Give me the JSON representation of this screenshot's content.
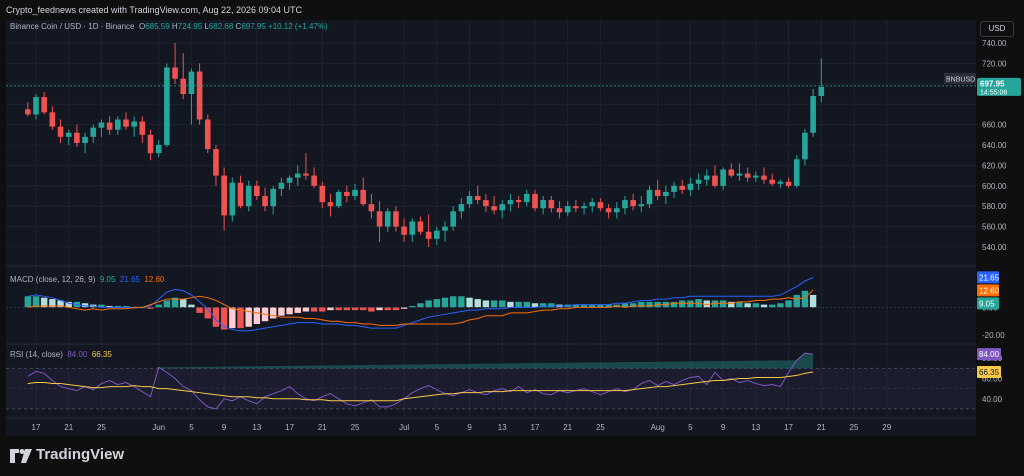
{
  "header": {
    "caption": "Crypto_feednews created with TradingView.com, Aug 22, 2026 09:04 UTC"
  },
  "legend_main": {
    "symbol": "Binance Coin / USD · 1D · Binance",
    "o_lbl": "O",
    "o": "685.59",
    "h_lbl": "H",
    "h": "724.95",
    "l_lbl": "L",
    "l": "682.68",
    "c_lbl": "C",
    "c": "697.95",
    "chg": "+10.12 (+1.47%)"
  },
  "legend_macd": {
    "label": "MACD (close, 12, 26, 9)",
    "hist": "9.05",
    "macd": "21.65",
    "signal": "12.60"
  },
  "legend_rsi": {
    "label": "RSI (14, close)",
    "rsi": "84.00",
    "ma": "66.35"
  },
  "axis": {
    "currency": "USD"
  },
  "brand": {
    "name": "TradingView"
  },
  "colors": {
    "up": "#26a69a",
    "down": "#ef5350",
    "macd": "#2962ff",
    "signal": "#ff6d00",
    "rsi": "#7e57c2",
    "rsi_ma": "#f7c948",
    "bg": "#131722"
  },
  "chart_data": {
    "type": "candlestick",
    "symbol": "BNBUSD",
    "last_price": {
      "label": "BNBUSD",
      "value": "697.95",
      "countdown": "14:55:06"
    },
    "price_axis": {
      "ticks": [
        540,
        560,
        580,
        600,
        620,
        640,
        660,
        680,
        700,
        720,
        740
      ],
      "labels": [
        "540.00",
        "560.00",
        "580.00",
        "600.00",
        "620.00",
        "640.00",
        "660.00",
        "",
        "",
        "720.00",
        "740.00"
      ]
    },
    "x_ticks": [
      {
        "day": 0,
        "label": "17"
      },
      {
        "day": 4,
        "label": "21"
      },
      {
        "day": 8,
        "label": "25"
      },
      {
        "day": 15,
        "label": "Jun"
      },
      {
        "day": 19,
        "label": "5"
      },
      {
        "day": 23,
        "label": "9"
      },
      {
        "day": 27,
        "label": "13"
      },
      {
        "day": 31,
        "label": "17"
      },
      {
        "day": 35,
        "label": "21"
      },
      {
        "day": 39,
        "label": "25"
      },
      {
        "day": 45,
        "label": "Jul"
      },
      {
        "day": 49,
        "label": "5"
      },
      {
        "day": 53,
        "label": "9"
      },
      {
        "day": 57,
        "label": "13"
      },
      {
        "day": 61,
        "label": "17"
      },
      {
        "day": 65,
        "label": "21"
      },
      {
        "day": 69,
        "label": "25"
      },
      {
        "day": 76,
        "label": "Aug"
      },
      {
        "day": 80,
        "label": "5"
      },
      {
        "day": 84,
        "label": "9"
      },
      {
        "day": 88,
        "label": "13"
      },
      {
        "day": 92,
        "label": "17"
      },
      {
        "day": 96,
        "label": "21"
      },
      {
        "day": 100,
        "label": "25"
      },
      {
        "day": 104,
        "label": "29"
      }
    ],
    "candles": [
      [
        -1,
        675,
        682,
        668,
        670
      ],
      [
        0,
        670,
        690,
        665,
        687
      ],
      [
        1,
        687,
        692,
        670,
        672
      ],
      [
        2,
        672,
        678,
        655,
        658
      ],
      [
        3,
        658,
        665,
        642,
        648
      ],
      [
        4,
        648,
        655,
        640,
        652
      ],
      [
        5,
        652,
        660,
        638,
        642
      ],
      [
        6,
        642,
        652,
        632,
        648
      ],
      [
        7,
        648,
        660,
        642,
        657
      ],
      [
        8,
        657,
        665,
        648,
        662
      ],
      [
        9,
        662,
        668,
        650,
        655
      ],
      [
        10,
        655,
        668,
        650,
        665
      ],
      [
        11,
        665,
        672,
        655,
        658
      ],
      [
        12,
        658,
        668,
        648,
        663
      ],
      [
        13,
        663,
        668,
        642,
        650
      ],
      [
        14,
        650,
        655,
        625,
        632
      ],
      [
        15,
        632,
        645,
        628,
        640
      ],
      [
        16,
        640,
        720,
        638,
        716
      ],
      [
        17,
        716,
        740,
        700,
        705
      ],
      [
        18,
        705,
        730,
        685,
        690
      ],
      [
        19,
        690,
        715,
        660,
        712
      ],
      [
        20,
        712,
        720,
        660,
        665
      ],
      [
        21,
        665,
        670,
        632,
        636
      ],
      [
        22,
        636,
        640,
        600,
        610
      ],
      [
        23,
        610,
        618,
        556,
        571
      ],
      [
        24,
        571,
        608,
        565,
        603
      ],
      [
        25,
        603,
        610,
        578,
        580
      ],
      [
        26,
        580,
        605,
        575,
        600
      ],
      [
        27,
        600,
        605,
        586,
        590
      ],
      [
        28,
        590,
        598,
        575,
        580
      ],
      [
        29,
        580,
        600,
        572,
        597
      ],
      [
        30,
        597,
        608,
        590,
        603
      ],
      [
        31,
        603,
        610,
        596,
        608
      ],
      [
        32,
        608,
        620,
        600,
        612
      ],
      [
        33,
        612,
        632,
        606,
        610
      ],
      [
        34,
        610,
        618,
        598,
        600
      ],
      [
        35,
        600,
        604,
        578,
        584
      ],
      [
        36,
        584,
        592,
        570,
        580
      ],
      [
        37,
        580,
        596,
        578,
        594
      ],
      [
        38,
        594,
        600,
        584,
        590
      ],
      [
        39,
        590,
        602,
        586,
        596
      ],
      [
        40,
        596,
        608,
        580,
        582
      ],
      [
        41,
        582,
        592,
        568,
        575
      ],
      [
        42,
        575,
        585,
        545,
        560
      ],
      [
        43,
        560,
        578,
        555,
        575
      ],
      [
        44,
        575,
        580,
        555,
        560
      ],
      [
        45,
        560,
        568,
        545,
        552
      ],
      [
        46,
        552,
        568,
        545,
        565
      ],
      [
        47,
        565,
        570,
        552,
        555
      ],
      [
        48,
        555,
        572,
        540,
        548
      ],
      [
        49,
        548,
        560,
        542,
        556
      ],
      [
        50,
        556,
        565,
        545,
        560
      ],
      [
        51,
        560,
        580,
        556,
        575
      ],
      [
        52,
        575,
        588,
        568,
        582
      ],
      [
        53,
        582,
        595,
        578,
        590
      ],
      [
        54,
        590,
        600,
        582,
        586
      ],
      [
        55,
        586,
        592,
        574,
        580
      ],
      [
        56,
        580,
        590,
        572,
        576
      ],
      [
        57,
        576,
        586,
        568,
        582
      ],
      [
        58,
        582,
        592,
        575,
        586
      ],
      [
        59,
        586,
        590,
        578,
        584
      ],
      [
        60,
        584,
        596,
        580,
        592
      ],
      [
        61,
        592,
        596,
        575,
        578
      ],
      [
        62,
        578,
        590,
        572,
        586
      ],
      [
        63,
        586,
        590,
        574,
        578
      ],
      [
        64,
        578,
        585,
        568,
        574
      ],
      [
        65,
        574,
        585,
        570,
        580
      ],
      [
        66,
        580,
        586,
        574,
        578
      ],
      [
        67,
        578,
        584,
        572,
        580
      ],
      [
        68,
        580,
        588,
        574,
        584
      ],
      [
        69,
        584,
        588,
        575,
        578
      ],
      [
        70,
        578,
        582,
        568,
        574
      ],
      [
        71,
        574,
        584,
        568,
        578
      ],
      [
        72,
        578,
        590,
        572,
        586
      ],
      [
        73,
        586,
        592,
        576,
        580
      ],
      [
        74,
        580,
        590,
        574,
        582
      ],
      [
        75,
        582,
        600,
        578,
        596
      ],
      [
        76,
        596,
        606,
        586,
        590
      ],
      [
        77,
        590,
        600,
        582,
        594
      ],
      [
        78,
        594,
        604,
        588,
        600
      ],
      [
        79,
        600,
        606,
        592,
        596
      ],
      [
        80,
        596,
        608,
        590,
        602
      ],
      [
        81,
        602,
        612,
        596,
        606
      ],
      [
        82,
        606,
        616,
        600,
        610
      ],
      [
        83,
        610,
        620,
        598,
        600
      ],
      [
        84,
        600,
        618,
        596,
        616
      ],
      [
        85,
        616,
        622,
        608,
        610
      ],
      [
        86,
        610,
        622,
        605,
        612
      ],
      [
        87,
        612,
        618,
        604,
        608
      ],
      [
        88,
        608,
        614,
        604,
        610
      ],
      [
        89,
        610,
        618,
        602,
        606
      ],
      [
        90,
        606,
        612,
        600,
        602
      ],
      [
        91,
        602,
        606,
        598,
        604
      ],
      [
        92,
        604,
        608,
        598,
        600
      ],
      [
        93,
        600,
        630,
        598,
        626
      ],
      [
        94,
        626,
        656,
        620,
        652
      ],
      [
        95,
        652,
        695,
        648,
        688
      ],
      [
        96,
        688,
        725,
        682,
        697
      ]
    ],
    "macd": {
      "y_ticks": [
        0,
        -20
      ],
      "hist": [
        8,
        8,
        7,
        6,
        5,
        4,
        4,
        3,
        2,
        2,
        1,
        1,
        1,
        0,
        0,
        -1,
        2,
        5,
        7,
        6,
        2,
        -4,
        -8,
        -14,
        -16,
        -15,
        -15,
        -14,
        -12,
        -10,
        -8,
        -6,
        -5,
        -4,
        -3,
        -3,
        -3,
        -2,
        -2,
        -2,
        -2,
        -2,
        -3,
        -2,
        -2,
        -2,
        -1,
        1,
        3,
        5,
        6,
        7,
        8,
        8,
        7,
        6,
        5,
        5,
        5,
        4,
        4,
        4,
        3,
        3,
        3,
        2,
        2,
        2,
        2,
        2,
        2,
        2,
        2,
        3,
        3,
        4,
        4,
        4,
        4,
        4,
        5,
        5,
        6,
        5,
        5,
        5,
        4,
        4,
        3,
        3,
        2,
        2,
        3,
        5,
        9,
        12,
        9
      ],
      "macd_line": [
        8,
        9,
        8,
        7,
        5,
        3,
        2,
        1,
        1,
        0,
        0,
        0,
        0,
        0,
        0,
        1,
        6,
        11,
        13,
        12,
        9,
        4,
        -1,
        -9,
        -14,
        -16,
        -17,
        -17,
        -16,
        -15,
        -14,
        -13,
        -12,
        -11,
        -11,
        -11,
        -12,
        -12,
        -12,
        -13,
        -13,
        -14,
        -15,
        -15,
        -15,
        -15,
        -13,
        -11,
        -9,
        -7,
        -6,
        -5,
        -4,
        -3,
        -2,
        -2,
        -1,
        -1,
        -1,
        0,
        0,
        0,
        0,
        1,
        1,
        1,
        1,
        2,
        2,
        2,
        2,
        2,
        3,
        3,
        4,
        5,
        5,
        6,
        6,
        7,
        7,
        8,
        8,
        8,
        8,
        8,
        8,
        8,
        8,
        8,
        8,
        8,
        9,
        12,
        15,
        19,
        21.65
      ],
      "signal_line": [
        0,
        1,
        1,
        1,
        1,
        0,
        -1,
        -2,
        -1,
        -2,
        -1,
        -1,
        -1,
        0,
        0,
        2,
        4,
        6,
        6,
        6,
        7,
        8,
        7,
        5,
        2,
        -1,
        -2,
        -3,
        -4,
        -5,
        -6,
        -7,
        -7,
        -7,
        -8,
        -8,
        -9,
        -10,
        -10,
        -11,
        -11,
        -12,
        -12,
        -13,
        -13,
        -13,
        -12,
        -12,
        -12,
        -12,
        -12,
        -12,
        -12,
        -11,
        -9,
        -8,
        -6,
        -6,
        -6,
        -4,
        -4,
        -4,
        -3,
        -2,
        -2,
        -1,
        -1,
        0,
        0,
        0,
        0,
        0,
        1,
        0,
        1,
        1,
        1,
        2,
        2,
        3,
        3,
        3,
        3,
        2,
        3,
        3,
        3,
        4,
        4,
        5,
        5,
        6,
        6,
        7,
        6,
        7,
        12.6
      ]
    },
    "rsi": {
      "y_ticks": [
        40,
        60,
        80
      ],
      "upper": 70,
      "lower": 30,
      "values": [
        62,
        67,
        65,
        58,
        52,
        50,
        48,
        52,
        49,
        55,
        58,
        54,
        56,
        52,
        47,
        42,
        71,
        66,
        60,
        52,
        48,
        39,
        32,
        30,
        40,
        38,
        42,
        38,
        35,
        42,
        45,
        48,
        52,
        45,
        40,
        38,
        42,
        45,
        40,
        35,
        33,
        36,
        39,
        32,
        32,
        35,
        40,
        46,
        50,
        53,
        49,
        45,
        43,
        46,
        49,
        46,
        44,
        48,
        50,
        47,
        52,
        46,
        49,
        45,
        44,
        48,
        46,
        48,
        50,
        47,
        44,
        47,
        50,
        47,
        49,
        55,
        58,
        53,
        57,
        54,
        58,
        61,
        62,
        54,
        66,
        58,
        60,
        56,
        58,
        55,
        53,
        54,
        52,
        66,
        78,
        85,
        84
      ],
      "ma": [
        55,
        56,
        56,
        55,
        55,
        54,
        53,
        52,
        51,
        51,
        52,
        52,
        52,
        53,
        52,
        52,
        50,
        50,
        49,
        48,
        47,
        46,
        45,
        44,
        43,
        42,
        42,
        42,
        41,
        41,
        40,
        40,
        40,
        40,
        39,
        39,
        39,
        38,
        38,
        38,
        38,
        38,
        38,
        38,
        38,
        38,
        40,
        41,
        42,
        43,
        44,
        45,
        45,
        46,
        46,
        46,
        47,
        47,
        47,
        48,
        48,
        48,
        48,
        48,
        48,
        48,
        48,
        48,
        48,
        48,
        48,
        48,
        48,
        48,
        49,
        50,
        51,
        52,
        52,
        53,
        54,
        55,
        56,
        57,
        58,
        58,
        59,
        60,
        60,
        61,
        61,
        61,
        61,
        62,
        63,
        65,
        66.35
      ]
    }
  }
}
